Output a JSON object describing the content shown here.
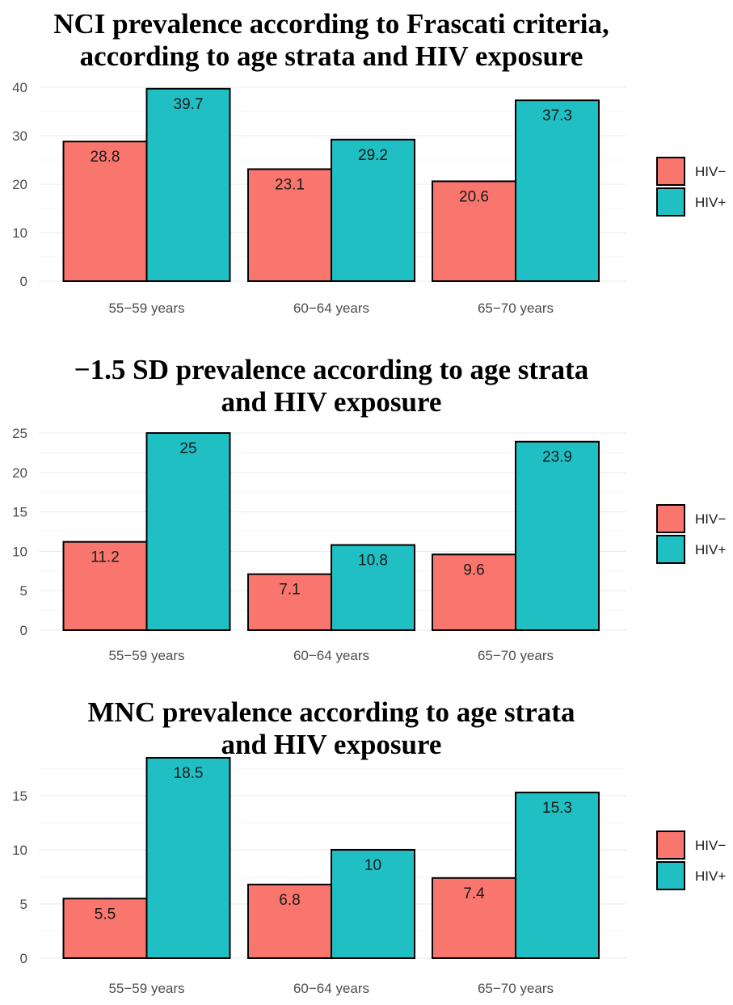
{
  "chart_data": [
    {
      "type": "bar",
      "title_lines": [
        "NCI prevalence according to Frascati criteria,",
        "according to age strata and HIV exposure"
      ],
      "categories": [
        "55−59 years",
        "60−64 years",
        "65−70 years"
      ],
      "series": [
        {
          "name": "HIV−",
          "color": "#F8766D",
          "values": [
            28.8,
            23.1,
            20.6
          ]
        },
        {
          "name": "HIV+",
          "color": "#1FBFC3",
          "values": [
            39.7,
            29.2,
            37.3
          ]
        }
      ],
      "data_labels": [
        [
          "28.8",
          "23.1",
          "20.6"
        ],
        [
          "39.7",
          "29.2",
          "37.3"
        ]
      ],
      "ylim": [
        0,
        40
      ],
      "yticks": [
        "0",
        "10",
        "20",
        "30",
        "40"
      ],
      "grid": true,
      "legend_position": "right"
    },
    {
      "type": "bar",
      "title_lines": [
        "−1.5 SD prevalence according to age strata",
        "and HIV exposure"
      ],
      "categories": [
        "55−59 years",
        "60−64 years",
        "65−70 years"
      ],
      "series": [
        {
          "name": "HIV−",
          "color": "#F8766D",
          "values": [
            11.2,
            7.1,
            9.6
          ]
        },
        {
          "name": "HIV+",
          "color": "#1FBFC3",
          "values": [
            25,
            10.8,
            23.9
          ]
        }
      ],
      "data_labels": [
        [
          "11.2",
          "7.1",
          "9.6"
        ],
        [
          "25",
          "10.8",
          "23.9"
        ]
      ],
      "ylim": [
        0,
        25
      ],
      "yticks": [
        "0",
        "5",
        "10",
        "15",
        "20",
        "25"
      ],
      "grid": true,
      "legend_position": "right"
    },
    {
      "type": "bar",
      "title_lines": [
        "MNC prevalence according to age strata",
        "and HIV exposure"
      ],
      "categories": [
        "55−59 years",
        "60−64 years",
        "65−70 years"
      ],
      "series": [
        {
          "name": "HIV−",
          "color": "#F8766D",
          "values": [
            5.5,
            6.8,
            7.4
          ]
        },
        {
          "name": "HIV+",
          "color": "#1FBFC3",
          "values": [
            18.5,
            10,
            15.3
          ]
        }
      ],
      "data_labels": [
        [
          "5.5",
          "6.8",
          "7.4"
        ],
        [
          "18.5",
          "10",
          "15.3"
        ]
      ],
      "ylim": [
        0,
        18.5
      ],
      "yticks": [
        "0",
        "5",
        "10",
        "15"
      ],
      "grid": true,
      "legend_position": "right"
    }
  ]
}
